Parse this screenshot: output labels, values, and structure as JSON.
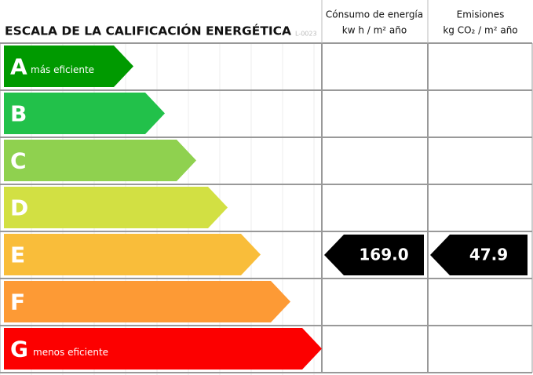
{
  "header": {
    "title": "ESCALA DE LA CALIFICACIÓN ENERGÉTICA",
    "code": "L-0023",
    "energy": {
      "line1": "Cónsumo de energía",
      "line2": "kw h / m² año"
    },
    "emissions": {
      "line1": "Emisiones",
      "line2": "kg CO₂ / m² año"
    }
  },
  "ratings": [
    {
      "letter": "A",
      "note": "más eficiente",
      "color": "#009a00"
    },
    {
      "letter": "B",
      "color": "#22c14a"
    },
    {
      "letter": "C",
      "color": "#8fd14f"
    },
    {
      "letter": "D",
      "color": "#d2e043"
    },
    {
      "letter": "E",
      "color": "#f9bd3a"
    },
    {
      "letter": "F",
      "color": "#fd9a35"
    },
    {
      "letter": "G",
      "note": "menos eficiente",
      "color": "#fc0000"
    }
  ],
  "result": {
    "row": 4,
    "energy": "169.0",
    "emissions": "47.9"
  }
}
